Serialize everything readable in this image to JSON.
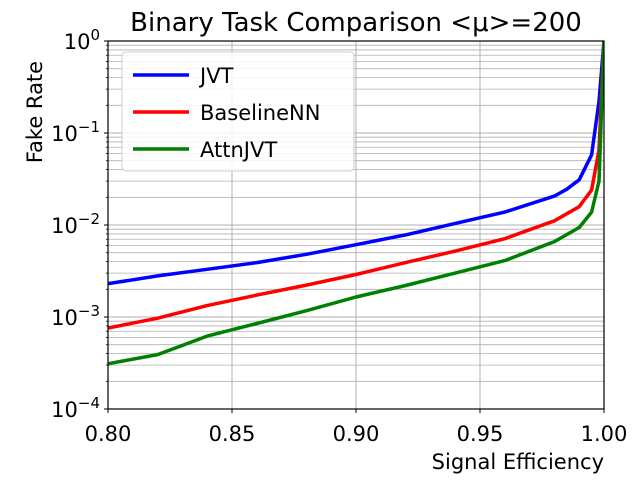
{
  "chart_data": {
    "type": "line",
    "title": "Binary Task Comparison <μ>=200",
    "xlabel": "Signal Efficiency",
    "ylabel": "Fake Rate",
    "xlim": [
      0.8,
      1.0
    ],
    "ylim": [
      0.0001,
      1
    ],
    "yscale": "log",
    "grid": true,
    "grid_minor": true,
    "legend_position": "top-left",
    "x_ticks": [
      "0.80",
      "0.85",
      "0.90",
      "0.95",
      "1.00"
    ],
    "y_ticks": [
      {
        "base": "10",
        "exp": "−4"
      },
      {
        "base": "10",
        "exp": "−3"
      },
      {
        "base": "10",
        "exp": "−2"
      },
      {
        "base": "10",
        "exp": "−1"
      },
      {
        "base": "10",
        "exp": "0"
      }
    ],
    "series": [
      {
        "name": "JVT",
        "color": "#0000ff",
        "x": [
          0.8,
          0.82,
          0.84,
          0.86,
          0.88,
          0.9,
          0.92,
          0.94,
          0.96,
          0.98,
          0.985,
          0.99,
          0.995,
          0.998,
          1.0
        ],
        "y": [
          0.0023,
          0.0028,
          0.0033,
          0.0039,
          0.0048,
          0.0061,
          0.0078,
          0.0104,
          0.0138,
          0.0206,
          0.0245,
          0.031,
          0.058,
          0.22,
          1.0
        ]
      },
      {
        "name": "BaselineNN",
        "color": "#ff0000",
        "x": [
          0.8,
          0.82,
          0.84,
          0.86,
          0.88,
          0.9,
          0.92,
          0.94,
          0.96,
          0.98,
          0.99,
          0.995,
          0.998,
          1.0
        ],
        "y": [
          0.00076,
          0.00097,
          0.00133,
          0.00173,
          0.00222,
          0.0029,
          0.0039,
          0.0052,
          0.0071,
          0.0111,
          0.0158,
          0.024,
          0.065,
          1.0
        ]
      },
      {
        "name": "AttnJVT",
        "color": "#008000",
        "x": [
          0.8,
          0.82,
          0.84,
          0.86,
          0.88,
          0.9,
          0.92,
          0.94,
          0.96,
          0.98,
          0.99,
          0.995,
          0.998,
          1.0
        ],
        "y": [
          0.00031,
          0.00039,
          0.00062,
          0.00085,
          0.00117,
          0.00165,
          0.0022,
          0.003,
          0.0041,
          0.0066,
          0.0094,
          0.0138,
          0.03,
          1.0
        ]
      }
    ]
  }
}
